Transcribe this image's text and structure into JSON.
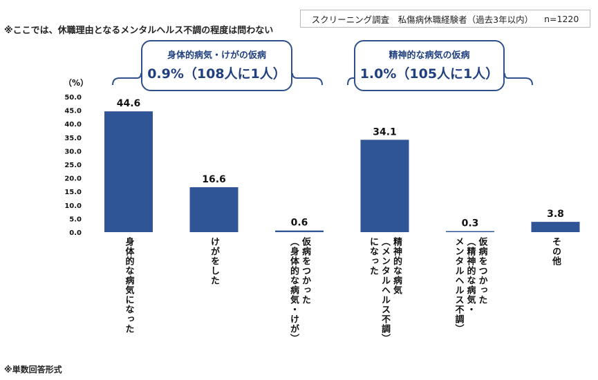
{
  "notes": {
    "top": "※ここでは、休職理由となるメンタルヘルス不調の程度は問わない",
    "bottom": "※単数回答形式"
  },
  "survey": {
    "title": "スクリーニング調査　私傷病休職経験者（過去3年以内）",
    "n": "n=1220"
  },
  "callouts": [
    {
      "label": "身体的病気・けがの仮病",
      "value": "0.9%（108人に1人）"
    },
    {
      "label": "精神的な病気の仮病",
      "value": "1.0%（105人に1人）"
    }
  ],
  "chart_data": {
    "type": "bar",
    "unit_label": "（%）",
    "ylim": [
      0,
      50
    ],
    "yticks": [
      "0.0",
      "5.0",
      "10.0",
      "15.0",
      "20.0",
      "25.0",
      "30.0",
      "35.0",
      "40.0",
      "45.0",
      "50.0"
    ],
    "categories": [
      "身体的な病気になった",
      "けがをした",
      "仮病をつかった\n（身体的な病気・けが）",
      "精神的な病気\n（メンタルヘルス不調）\nになった",
      "仮病をつかった\n（精神的な病気・\nメンタルヘルス不調）",
      "その他"
    ],
    "values": [
      44.6,
      16.6,
      0.6,
      34.1,
      0.3,
      3.8
    ],
    "value_labels": [
      "44.6",
      "16.6",
      "0.6",
      "34.1",
      "0.3",
      "3.8"
    ],
    "bar_color": "#2f5597",
    "grid": false,
    "legend": "none"
  }
}
